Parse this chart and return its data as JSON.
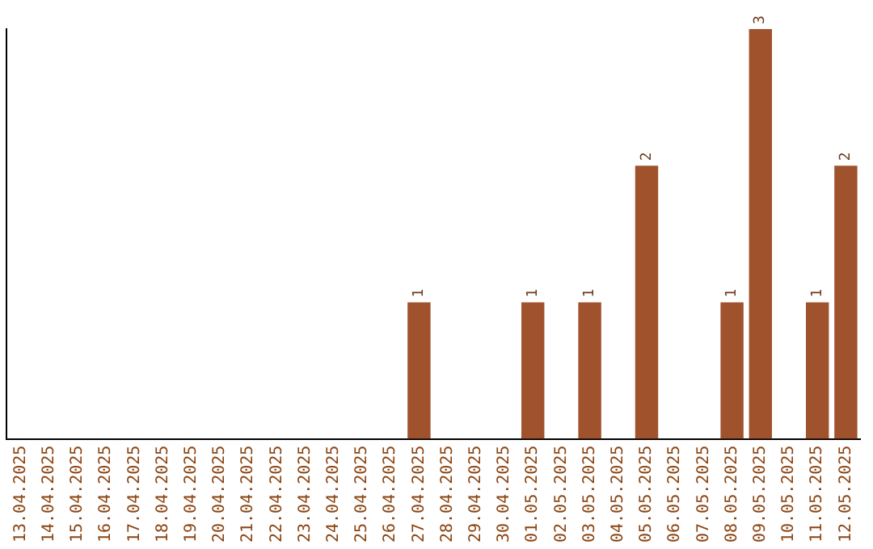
{
  "chart_data": {
    "type": "bar",
    "categories": [
      "13.04.2025",
      "14.04.2025",
      "15.04.2025",
      "16.04.2025",
      "17.04.2025",
      "18.04.2025",
      "19.04.2025",
      "20.04.2025",
      "21.04.2025",
      "22.04.2025",
      "23.04.2025",
      "24.04.2025",
      "25.04.2025",
      "26.04.2025",
      "27.04.2025",
      "28.04.2025",
      "29.04.2025",
      "30.04.2025",
      "01.05.2025",
      "02.05.2025",
      "03.05.2025",
      "04.05.2025",
      "05.05.2025",
      "06.05.2025",
      "07.05.2025",
      "08.05.2025",
      "09.05.2025",
      "10.05.2025",
      "11.05.2025",
      "12.05.2025"
    ],
    "values": [
      null,
      null,
      null,
      null,
      null,
      null,
      null,
      null,
      null,
      null,
      null,
      null,
      null,
      null,
      1,
      null,
      null,
      null,
      1,
      null,
      1,
      null,
      2,
      null,
      null,
      1,
      3,
      null,
      1,
      2
    ],
    "data_labels": true,
    "color": "#a0522d",
    "tick_labels": "x",
    "grid": false,
    "legend": false
  }
}
